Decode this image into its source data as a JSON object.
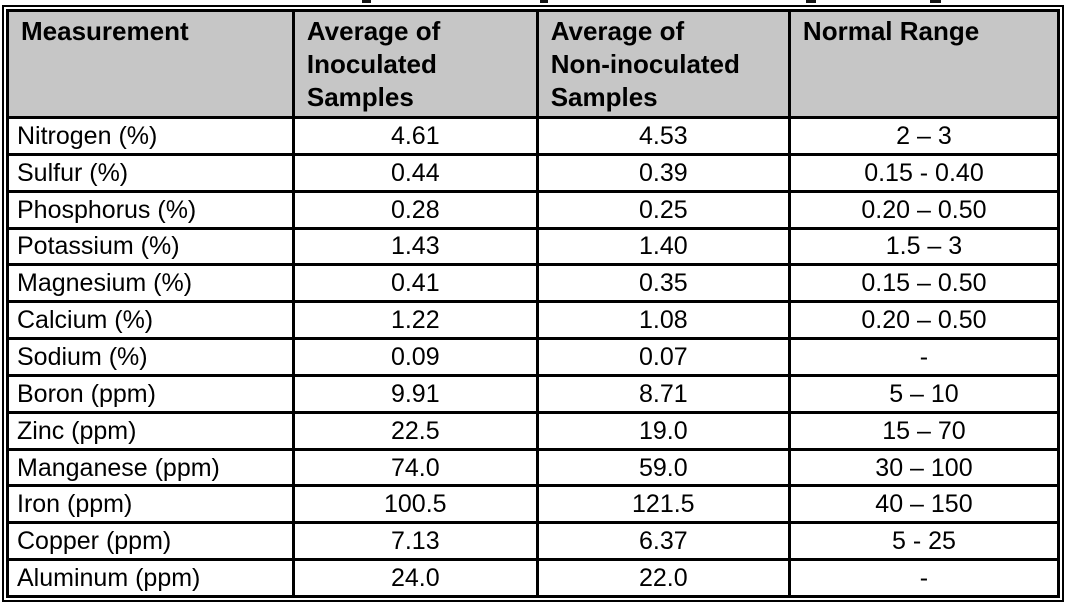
{
  "colors": {
    "header_bg": "#c6c6c6",
    "border": "#000000",
    "text": "#000000",
    "background": "#ffffff"
  },
  "table": {
    "headers": [
      "Measurement",
      "Average of\nInoculated\nSamples",
      "Average of\nNon-inoculated\nSamples",
      "Normal Range"
    ],
    "rows": [
      {
        "measurement": "Nitrogen (%)",
        "inoculated": "4.61",
        "non_inoculated": "4.53",
        "normal_range": "2 – 3"
      },
      {
        "measurement": "Sulfur (%)",
        "inoculated": "0.44",
        "non_inoculated": "0.39",
        "normal_range": "0.15 - 0.40"
      },
      {
        "measurement": "Phosphorus (%)",
        "inoculated": "0.28",
        "non_inoculated": "0.25",
        "normal_range": "0.20 – 0.50"
      },
      {
        "measurement": "Potassium (%)",
        "inoculated": "1.43",
        "non_inoculated": "1.40",
        "normal_range": "1.5 – 3"
      },
      {
        "measurement": "Magnesium (%)",
        "inoculated": "0.41",
        "non_inoculated": "0.35",
        "normal_range": "0.15 – 0.50"
      },
      {
        "measurement": "Calcium (%)",
        "inoculated": "1.22",
        "non_inoculated": "1.08",
        "normal_range": "0.20 – 0.50"
      },
      {
        "measurement": "Sodium (%)",
        "inoculated": "0.09",
        "non_inoculated": "0.07",
        "normal_range": "-"
      },
      {
        "measurement": "Boron (ppm)",
        "inoculated": "9.91",
        "non_inoculated": "8.71",
        "normal_range": "5 – 10"
      },
      {
        "measurement": "Zinc (ppm)",
        "inoculated": "22.5",
        "non_inoculated": "19.0",
        "normal_range": "15 – 70"
      },
      {
        "measurement": "Manganese (ppm)",
        "inoculated": "74.0",
        "non_inoculated": "59.0",
        "normal_range": "30 – 100"
      },
      {
        "measurement": "Iron (ppm)",
        "inoculated": "100.5",
        "non_inoculated": "121.5",
        "normal_range": "40 – 150"
      },
      {
        "measurement": "Copper (ppm)",
        "inoculated": "7.13",
        "non_inoculated": "6.37",
        "normal_range": "5 - 25"
      },
      {
        "measurement": "Aluminum (ppm)",
        "inoculated": "24.0",
        "non_inoculated": "22.0",
        "normal_range": "-"
      }
    ]
  }
}
